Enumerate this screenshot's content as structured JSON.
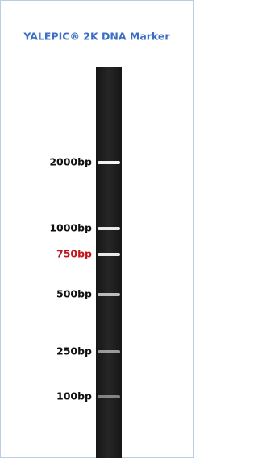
{
  "title": "YALEPIC® 2K DNA Marker",
  "bands": [
    {
      "label": "2000bp"
    },
    {
      "label": "1000bp"
    },
    {
      "label": "750bp",
      "highlight": true
    },
    {
      "label": "500bp"
    },
    {
      "label": "250bp"
    },
    {
      "label": "100bp"
    }
  ]
}
